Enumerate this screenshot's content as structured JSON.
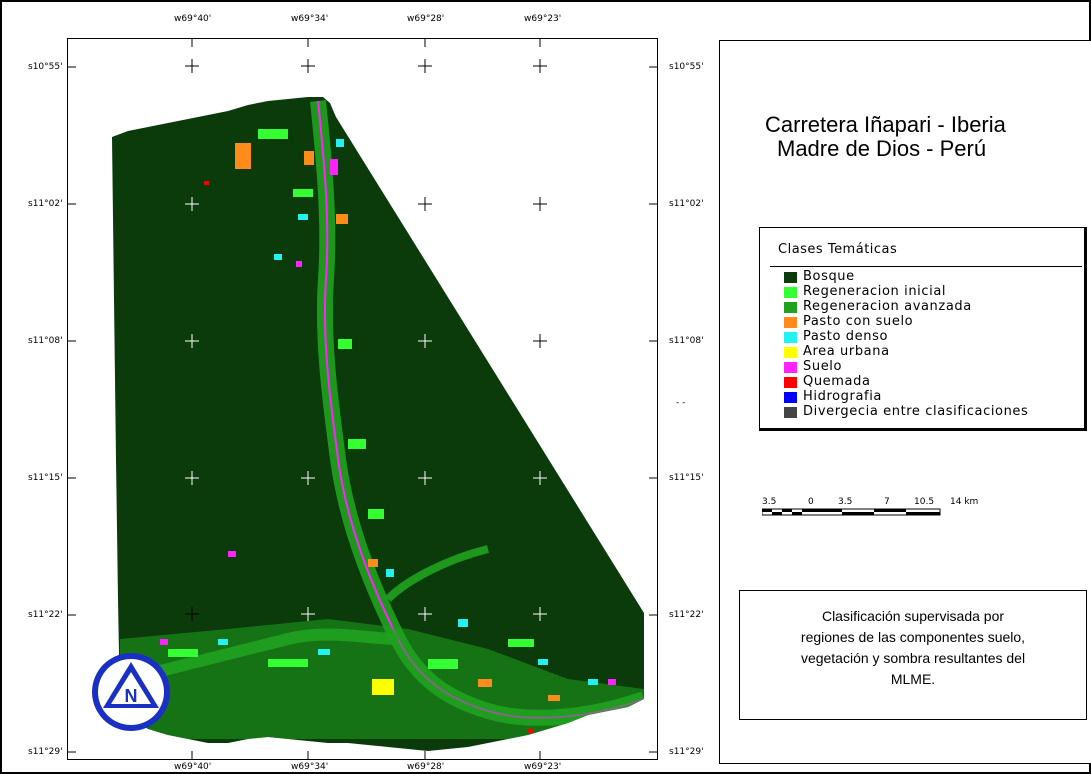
{
  "map": {
    "top_longitudes": [
      "w69°40'",
      "w69°34'",
      "w69°28'",
      "w69°23'"
    ],
    "bottom_longitudes": [
      "w69°40'",
      "w69°34'",
      "w69°28'",
      "w69°23'"
    ],
    "left_latitudes": [
      "s10°55'",
      "s11°02'",
      "s11°08'",
      "s11°15'",
      "s11°22'",
      "s11°29'"
    ],
    "right_latitudes": [
      "s10°55'",
      "s11°02'",
      "s11°08'",
      "s11°15'",
      "s11°22'",
      "s11°29'"
    ],
    "right_edge_mark": "- -",
    "north_letter": "N"
  },
  "title": {
    "line1": "Carretera Iñapari - Iberia",
    "line2": "Madre de Dios - Perú"
  },
  "legend": {
    "title": "Clases Temáticas",
    "items": [
      {
        "label": "Bosque",
        "color": "#0b3a0b"
      },
      {
        "label": "Regeneracion inicial",
        "color": "#33ff33"
      },
      {
        "label": "Regeneracion avanzada",
        "color": "#1fa31f"
      },
      {
        "label": "Pasto con suelo",
        "color": "#ff8c1a"
      },
      {
        "label": "Pasto denso",
        "color": "#22f2f2"
      },
      {
        "label": "Area urbana",
        "color": "#ffff00"
      },
      {
        "label": "Suelo",
        "color": "#ff22ff"
      },
      {
        "label": "Quemada",
        "color": "#ff0000"
      },
      {
        "label": "Hidrografia",
        "color": "#0000ff"
      },
      {
        "label": "Divergecia entre clasificaciones",
        "color": "#444444"
      }
    ]
  },
  "scale": {
    "ticks": [
      "3.5",
      "0",
      "3.5",
      "7",
      "10.5",
      "14 km"
    ]
  },
  "description": {
    "line1": "Clasificación supervisada por",
    "line2": "regiones de las componentes suelo,",
    "line3": "vegetación y sombra resultantes del",
    "line4": "MLME."
  }
}
